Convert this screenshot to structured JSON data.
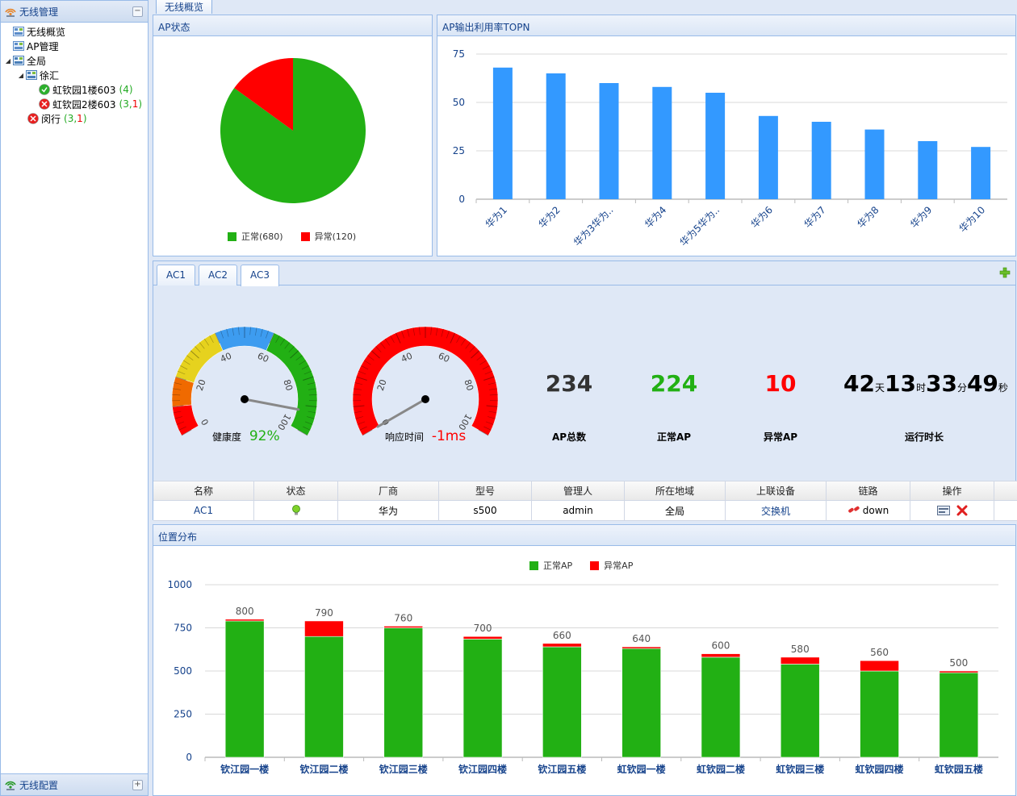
{
  "nav": {
    "title": "无线管理",
    "tree": [
      {
        "label": "无线概览",
        "level": 0,
        "icon": "overview-icon"
      },
      {
        "label": "AP管理",
        "level": 0,
        "icon": "ap-manage-icon"
      },
      {
        "label": "全局",
        "level": 0,
        "icon": "global-icon",
        "expanded": true
      },
      {
        "label": "徐汇",
        "level": 1,
        "icon": "region-icon",
        "expanded": true
      },
      {
        "label": "虹钦园1楼603",
        "count": "(4)",
        "level": 2,
        "icon": "ok-status-icon"
      },
      {
        "label": "虹钦园2楼603",
        "count": "(3,1)",
        "level": 2,
        "icon": "alert-status-icon"
      },
      {
        "label": "闵行",
        "count": "(3,1)",
        "level": 1,
        "icon": "alert-status-icon"
      }
    ],
    "bottom_title": "无线配置"
  },
  "top_tab": "无线概览",
  "ap_status": {
    "title": "AP状态",
    "legend": [
      {
        "label": "正常(680)",
        "color": "#22b014"
      },
      {
        "label": "异常(120)",
        "color": "#ff0000"
      }
    ]
  },
  "topn": {
    "title": "AP输出利用率TOPN"
  },
  "ac_tabs": [
    "AC1",
    "AC2",
    "AC3"
  ],
  "gauges": {
    "health": {
      "label": "健康度",
      "value_text": "92%",
      "value": 92
    },
    "response": {
      "label": "响应时间",
      "value_text": "-1ms",
      "value": -1
    },
    "ticks": [
      "0",
      "20",
      "40",
      "60",
      "80",
      "100"
    ]
  },
  "metrics": {
    "total": {
      "value": "234",
      "label": "AP总数"
    },
    "normal": {
      "value": "224",
      "label": "正常AP"
    },
    "abnormal": {
      "value": "10",
      "label": "异常AP"
    },
    "uptime": {
      "days": "42",
      "days_unit": "天",
      "hours": "13",
      "hours_unit": "时",
      "minutes": "33",
      "minutes_unit": "分",
      "seconds": "49",
      "seconds_unit": "秒",
      "label": "运行时长"
    }
  },
  "table": {
    "headers": [
      "名称",
      "状态",
      "厂商",
      "型号",
      "管理人",
      "所在地域",
      "上联设备",
      "链路",
      "操作"
    ],
    "row": {
      "name": "AC1",
      "vendor": "华为",
      "model": "s500",
      "manager": "admin",
      "region": "全局",
      "uplink": "交换机",
      "link": "down"
    }
  },
  "location": {
    "title": "位置分布",
    "legend": [
      {
        "label": "正常AP",
        "color": "#22b014"
      },
      {
        "label": "异常AP",
        "color": "#ff0000"
      }
    ]
  },
  "chart_data": [
    {
      "type": "pie",
      "title": "AP状态",
      "labels": [
        "正常",
        "异常"
      ],
      "values": [
        680,
        120
      ],
      "colors": [
        "#22b014",
        "#ff0000"
      ],
      "legend": "bottom"
    },
    {
      "type": "bar",
      "title": "AP输出利用率TOPN",
      "categories": [
        "华为1",
        "华为2",
        "华为3华为..",
        "华为4",
        "华为5华为..",
        "华为6",
        "华为7",
        "华为8",
        "华为9",
        "华为10"
      ],
      "values": [
        68,
        65,
        60,
        58,
        55,
        43,
        40,
        36,
        30,
        27
      ],
      "ylim": [
        0,
        75
      ],
      "yticks": [
        0,
        25,
        50,
        75
      ],
      "color": "#3399ff",
      "grid": true
    },
    {
      "type": "bar",
      "stacked": true,
      "title": "位置分布",
      "categories": [
        "钦江园一楼",
        "钦江园二楼",
        "钦江园三楼",
        "钦江园四楼",
        "钦江园五楼",
        "虹钦园一楼",
        "虹钦园二楼",
        "虹钦园三楼",
        "虹钦园四楼",
        "虹钦园五楼"
      ],
      "series": [
        {
          "name": "正常AP",
          "values": [
            790,
            700,
            750,
            685,
            640,
            630,
            580,
            540,
            500,
            490
          ],
          "color": "#22b014"
        },
        {
          "name": "异常AP",
          "values": [
            10,
            90,
            10,
            15,
            20,
            10,
            20,
            40,
            60,
            10
          ],
          "color": "#ff0000"
        }
      ],
      "totals": [
        800,
        790,
        760,
        700,
        660,
        640,
        600,
        580,
        560,
        500
      ],
      "ylim": [
        0,
        1000
      ],
      "yticks": [
        0,
        250,
        500,
        750,
        1000
      ],
      "legend": "top-center",
      "grid": true
    }
  ]
}
